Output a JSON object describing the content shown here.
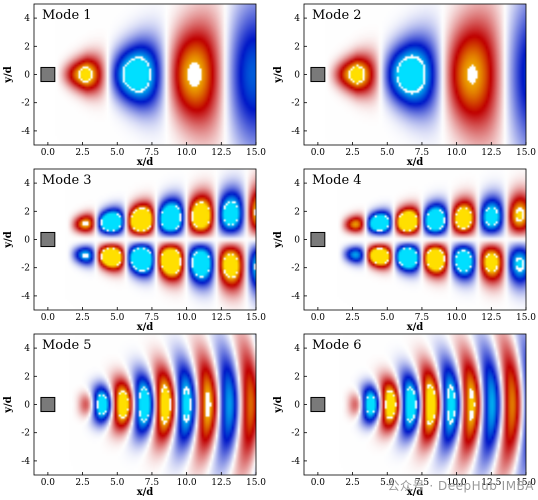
{
  "axes": {
    "xlabel": "x/d",
    "ylabel": "y/d",
    "xticks": [
      "0.0",
      "2.5",
      "5.0",
      "7.5",
      "10.0",
      "12.5",
      "15.0"
    ],
    "yticks": [
      "4",
      "2",
      "0",
      "-2",
      "-4"
    ]
  },
  "panels": [
    {
      "label": "Mode 1",
      "kind": "sym",
      "k": 0.74,
      "spread": 0.1,
      "ymax": 2.0,
      "x0": 0.6,
      "decay": 0.07
    },
    {
      "label": "Mode 2",
      "kind": "sym",
      "k": 0.7,
      "spread": 0.1,
      "ymax": 2.1,
      "x0": 0.6,
      "decay": 0.07
    },
    {
      "label": "Mode 3",
      "kind": "anti",
      "k": 1.45,
      "spread": 0.09,
      "ymax": 1.7,
      "x0": 1.3,
      "decay": 0.1
    },
    {
      "label": "Mode 4",
      "kind": "anti",
      "k": 1.55,
      "spread": 0.08,
      "ymax": 1.6,
      "x0": 1.4,
      "decay": 0.11
    },
    {
      "label": "Mode 5",
      "kind": "cone",
      "k": 2.05,
      "spread": 0.2,
      "ymax": 3.2,
      "x0": 1.6,
      "decay": 0.07
    },
    {
      "label": "Mode 6",
      "kind": "cone",
      "k": 2.15,
      "spread": 0.21,
      "ymax": 3.3,
      "x0": 1.6,
      "decay": 0.07
    }
  ],
  "colors": {
    "pos": "#c00000",
    "neg": "#0018c8",
    "hot": "#ffe000",
    "cold": "#00e0ff",
    "cylinder": "#7a7a7a"
  },
  "watermark": "公众号 · DeepHub IMBA"
}
